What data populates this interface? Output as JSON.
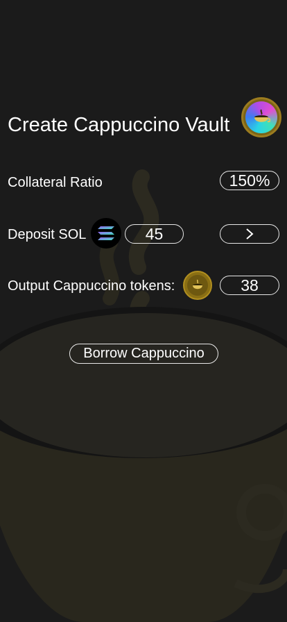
{
  "header": {
    "title": "Create Cappuccino Vault",
    "logo_icon": "cappuccino-cup-icon"
  },
  "collateral": {
    "label": "Collateral Ratio",
    "value": "150%"
  },
  "deposit": {
    "label": "Deposit SOL",
    "token_icon": "solana-icon",
    "amount": "45",
    "next_icon": "chevron-right-icon"
  },
  "output": {
    "label": "Output Cappuccino tokens:",
    "token_icon": "cappuccino-coin-icon",
    "amount": "38"
  },
  "actions": {
    "borrow_label": "Borrow Cappuccino"
  },
  "colors": {
    "background": "#1b1b1b",
    "text": "#ffffff",
    "gold": "#9c7c1f",
    "art": "#28261c"
  }
}
